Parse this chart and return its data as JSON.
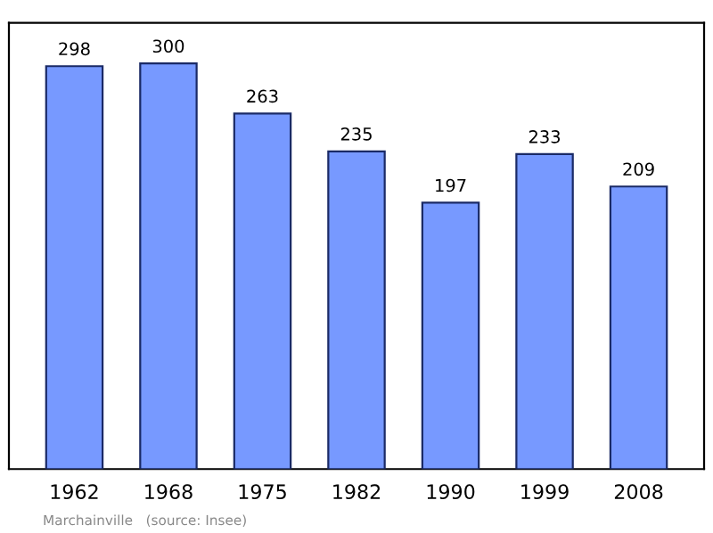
{
  "chart_data": {
    "type": "bar",
    "categories": [
      "1962",
      "1968",
      "1975",
      "1982",
      "1990",
      "1999",
      "2008"
    ],
    "values": [
      298,
      300,
      263,
      235,
      197,
      233,
      209
    ],
    "color": "#7799ff",
    "data_labels": true,
    "annotations": [
      "Marchainville   (source: Insee)"
    ]
  }
}
